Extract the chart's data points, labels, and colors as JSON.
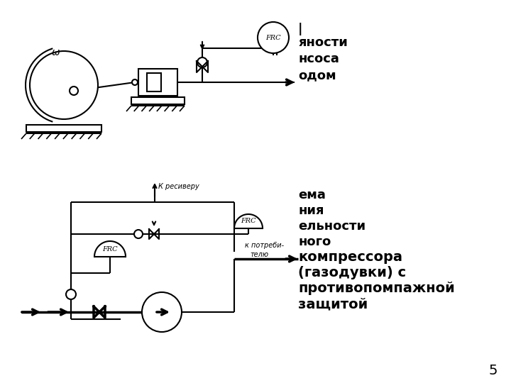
{
  "bg_color": "#ffffff",
  "text_color": "#000000",
  "page_number": "5",
  "fig1_partial_text": [
    "яности",
    "нсоса",
    "одом"
  ],
  "fig2_partial_text": [
    "ема",
    "ния",
    "ельности",
    "ного",
    "компрессора",
    "(газодувки) с",
    "противопомпажной",
    "защитой"
  ],
  "label_resiveru": "К ресиверу",
  "label_potrebitelyu1": "к потреби-",
  "label_potrebitelyu2": "телю"
}
